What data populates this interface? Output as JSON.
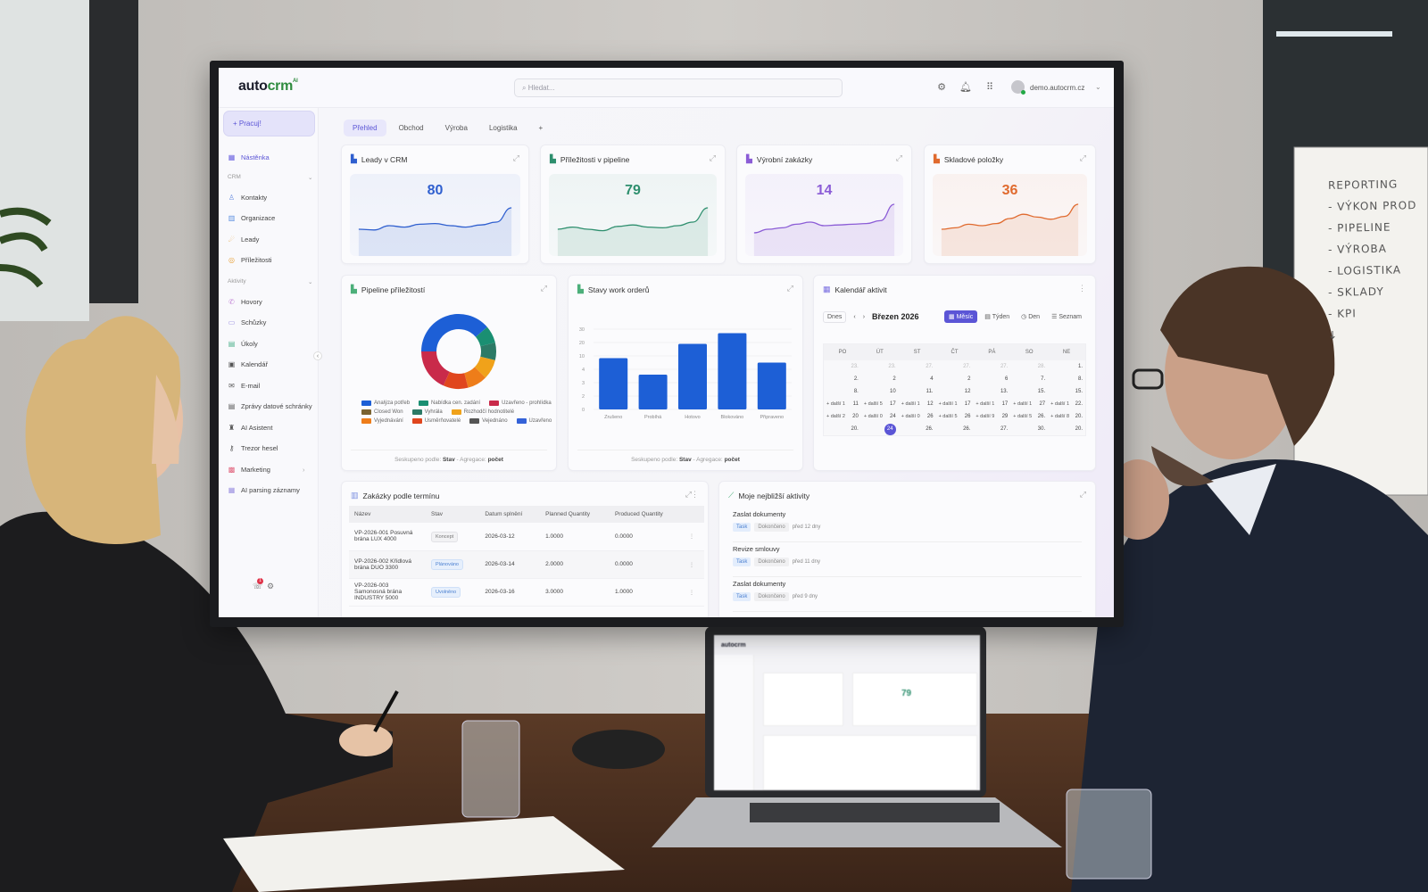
{
  "app": {
    "logo_main": "auto",
    "logo_accent": "crm",
    "logo_sup": "AI",
    "search_placeholder": "Hledat...",
    "user": "demo.autocrm.cz",
    "notifications": "1"
  },
  "sidebar": {
    "new_button": "+ Pracuj!",
    "items": [
      {
        "label": "Nástěnka",
        "icon": "dashboard-icon",
        "glyph": "▦",
        "color": "#6b62e0",
        "active": true
      },
      {
        "group": "CRM"
      },
      {
        "label": "Kontakty",
        "icon": "user-icon",
        "glyph": "♙",
        "color": "#6b8fe0"
      },
      {
        "label": "Organizace",
        "icon": "building-icon",
        "glyph": "▥",
        "color": "#5b8fe0"
      },
      {
        "label": "Leady",
        "icon": "handshake-icon",
        "glyph": "☄",
        "color": "#e8a23a"
      },
      {
        "label": "Příležitosti",
        "icon": "coin-icon",
        "glyph": "◎",
        "color": "#e8a23a"
      },
      {
        "group": "Aktivity"
      },
      {
        "label": "Hovory",
        "icon": "phone-icon",
        "glyph": "✆",
        "color": "#c58ad8"
      },
      {
        "label": "Schůzky",
        "icon": "calendar-icon",
        "glyph": "▭",
        "color": "#9a8fe0"
      },
      {
        "label": "Úkoly",
        "icon": "clipboard-icon",
        "glyph": "▤",
        "color": "#4cb08a"
      },
      {
        "label": "Kalendář",
        "icon": "calendar-icon",
        "glyph": "▣",
        "color": "#555"
      },
      {
        "label": "E-mail",
        "icon": "mail-icon",
        "glyph": "✉",
        "color": "#555"
      },
      {
        "label": "Zprávy datové schránky",
        "icon": "inbox-icon",
        "glyph": "▤",
        "color": "#555"
      },
      {
        "label": "AI Asistent",
        "icon": "robot-icon",
        "glyph": "♜",
        "color": "#555"
      },
      {
        "label": "Trezor hesel",
        "icon": "key-icon",
        "glyph": "⚷",
        "color": "#555"
      },
      {
        "label": "Marketing",
        "icon": "marketing-icon",
        "glyph": "▩",
        "color": "#e0607a",
        "chevron": "›"
      },
      {
        "label": "AI parsing záznamy",
        "icon": "ai-parsing-icon",
        "glyph": "▦",
        "color": "#9a8fe0"
      }
    ]
  },
  "tabs": [
    {
      "label": "Přehled",
      "active": true
    },
    {
      "label": "Obchod"
    },
    {
      "label": "Výroba"
    },
    {
      "label": "Logistika"
    },
    {
      "label": "+"
    }
  ],
  "kpis": [
    {
      "title": "Leady v CRM",
      "value": "80",
      "color": "#2f5fcf",
      "trend": [
        4,
        3.8,
        5,
        4.6,
        5.4,
        5.6,
        5,
        4.6,
        5.2,
        6,
        10
      ]
    },
    {
      "title": "Příležitosti v pipeline",
      "value": "79",
      "color": "#2e8f6e",
      "trend": [
        4,
        4.6,
        4,
        3.6,
        4.8,
        5.2,
        4.6,
        4.4,
        5,
        6,
        10
      ]
    },
    {
      "title": "Výrobní zakázky",
      "value": "14",
      "color": "#8b5cd6",
      "trend": [
        3,
        4,
        4.4,
        5.4,
        6,
        5,
        5.2,
        5.4,
        5.6,
        6.4,
        11
      ]
    },
    {
      "title": "Skladové položky",
      "value": "36",
      "color": "#e06a2e",
      "trend": [
        4,
        4.4,
        5.4,
        5,
        5.6,
        7,
        8.2,
        7.4,
        6.8,
        7.6,
        11
      ]
    }
  ],
  "pipeline": {
    "title": "Pipeline příležitostí",
    "footer_prefix": "Seskupeno podle:",
    "footer_group": "Stav",
    "footer_mid": " - Agregace:",
    "footer_agg": "počet",
    "chart_data": {
      "type": "pie",
      "donut": true,
      "slices": [
        {
          "name": "Analýza potřeb",
          "value": 36,
          "color": "#1d5fd6"
        },
        {
          "name": "Nabídka cen. zadání",
          "value": 7,
          "color": "#1a8f72"
        },
        {
          "name": "Vyhrála",
          "value": 7,
          "color": "#2c7a66"
        },
        {
          "name": "Closed Won",
          "value": 0,
          "color": "#7a6330"
        },
        {
          "name": "Rozhodčí hodnotitelé",
          "value": 8,
          "color": "#f0a21a"
        },
        {
          "name": "Vyjednávání",
          "value": 8,
          "color": "#ee7d1a"
        },
        {
          "name": "Usměrňovatelé",
          "value": 10,
          "color": "#e0461e"
        },
        {
          "name": "Uzavřeno - prohlídka",
          "value": 17,
          "color": "#c92a4a"
        },
        {
          "name": "Vejednáno",
          "value": 0,
          "color": "#555555"
        },
        {
          "name": "Uzavřeno",
          "value": 0,
          "color": "#3462d8"
        }
      ],
      "legend_order": [
        "Analýza potřeb",
        "Nabídka cen. zadání",
        "Uzavřeno - prohlídka",
        "Closed Won",
        "Vyhrála",
        "Rozhodčí hodnotitelé",
        "Vyjednávání",
        "Usměrňovatelé",
        "Vejednáno",
        "Uzavřeno"
      ]
    }
  },
  "workorders": {
    "title": "Stavy work orderů",
    "footer_prefix": "Seskupeno podle:",
    "footer_group": "Stav",
    "footer_mid": " - Agregace:",
    "footer_agg": "počet",
    "chart_data": {
      "type": "bar",
      "categories": [
        "Zrušeno",
        "Probíhá",
        "Hotovo",
        "Blokováno",
        "Připraveno"
      ],
      "values": [
        9,
        3.6,
        19,
        27,
        7
      ],
      "yticks": [
        0,
        2,
        3,
        4,
        10,
        20,
        30
      ],
      "color": "#1d5fd6",
      "grid": true
    }
  },
  "calendar": {
    "title": "Kalendář aktivit",
    "today": "Dnes",
    "prev": "‹",
    "next": "›",
    "month": "Březen 2026",
    "views": [
      {
        "label": "Měsíc",
        "glyph": "▦",
        "active": true
      },
      {
        "label": "Týden",
        "glyph": "▤"
      },
      {
        "label": "Den",
        "glyph": "◷"
      },
      {
        "label": "Seznam",
        "glyph": "☰"
      }
    ],
    "weekdays": [
      "PO",
      "ÚT",
      "ST",
      "ČT",
      "PÁ",
      "SO",
      "NE"
    ],
    "weeks": [
      [
        {
          "d": "23.",
          "prev": true
        },
        {
          "d": "23.",
          "prev": true
        },
        {
          "d": "27.",
          "prev": true
        },
        {
          "d": "27.",
          "prev": true
        },
        {
          "d": "27.",
          "prev": true
        },
        {
          "d": "28.",
          "prev": true
        },
        {
          "d": "1."
        }
      ],
      [
        {
          "d": "2."
        },
        {
          "d": "2"
        },
        {
          "d": "4"
        },
        {
          "d": "2"
        },
        {
          "d": "6"
        },
        {
          "d": "7."
        },
        {
          "d": "8."
        }
      ],
      [
        {
          "d": "8."
        },
        {
          "d": "10"
        },
        {
          "d": "11."
        },
        {
          "d": "12"
        },
        {
          "d": "13."
        },
        {
          "d": "15."
        },
        {
          "d": "15."
        }
      ],
      [
        {
          "d": "11",
          "more": "+ další 1"
        },
        {
          "d": "17",
          "more": "+ další 5"
        },
        {
          "d": "12",
          "more": "+ další 1"
        },
        {
          "d": "17",
          "more": "+ další 1"
        },
        {
          "d": "17",
          "more": "+ další 1"
        },
        {
          "d": "27",
          "more": "+ další 1"
        },
        {
          "d": "22.",
          "more": "+ další 1"
        }
      ],
      [
        {
          "d": "20",
          "more": "+ další 2"
        },
        {
          "d": "24",
          "more": "+ další 0"
        },
        {
          "d": "26",
          "more": "+ další 0"
        },
        {
          "d": "26",
          "more": "+ další 5"
        },
        {
          "d": "29",
          "more": "+ další 9"
        },
        {
          "d": "26.",
          "more": "+ další 5"
        },
        {
          "d": "20.",
          "more": "+ další 8"
        }
      ],
      [
        {
          "d": "20."
        },
        {
          "d": "24",
          "selected": true
        },
        {
          "d": "26."
        },
        {
          "d": "26."
        },
        {
          "d": "27."
        },
        {
          "d": "30."
        },
        {
          "d": "20."
        }
      ]
    ]
  },
  "orders": {
    "title": "Zakázky podle termínu",
    "columns": [
      "Název",
      "Stav",
      "Datum splnění",
      "Planned Quantity",
      "Produced Quantity"
    ],
    "rows": [
      {
        "name": "VP-2026-001 Posuvná brána LUX 4000",
        "status": "Koncept",
        "status_style": "gray",
        "date": "2026-03-12",
        "planned": "1.0000",
        "produced": "0.0000"
      },
      {
        "name": "VP-2026-002 Křídlová brána DUO 3300",
        "status": "Plánováno",
        "status_style": "blue",
        "date": "2026-03-14",
        "planned": "2.0000",
        "produced": "0.0000"
      },
      {
        "name": "VP-2026-003 Samonosná brána INDUSTRY 5000",
        "status": "Uvolněno",
        "status_style": "blue",
        "date": "2026-03-16",
        "planned": "3.0000",
        "produced": "1.0000"
      }
    ]
  },
  "activities": {
    "title": "Moje nejbližší aktivity",
    "items": [
      {
        "title": "Zaslat dokumenty",
        "type": "Task",
        "status": "Dokončeno",
        "when": "před 12 dny"
      },
      {
        "title": "Revize smlouvy",
        "type": "Task",
        "status": "Dokončeno",
        "when": "před 11 dny"
      },
      {
        "title": "Zaslat dokumenty",
        "type": "Task",
        "status": "Dokončeno",
        "when": "před 9 dny"
      }
    ]
  },
  "whiteboard": [
    "REPORTING",
    "- VÝKON PROD",
    "- PIPELINE",
    "- VÝROBA",
    "- LOGISTIKA",
    "- SKLADY",
    "- KPI",
    "↓"
  ],
  "laptop": {
    "logo": "autocrm",
    "kpi_value": "79"
  }
}
